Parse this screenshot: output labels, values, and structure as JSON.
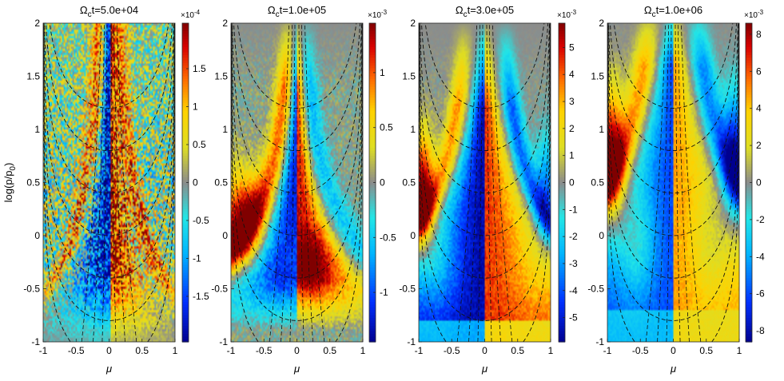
{
  "chart_data": [
    {
      "type": "heatmap",
      "title": "Ωct=5.0e+04",
      "title_prefix": "Ω",
      "title_sub": "c",
      "title_suffix": "t=5.0e+04",
      "xlabel": "μ",
      "ylabel": "log(p/p0)",
      "ylabel_main": "log(p/p",
      "ylabel_sub": "0",
      "ylabel_end": ")",
      "xlim": [
        -1,
        1
      ],
      "ylim": [
        -1,
        2
      ],
      "xticks": [
        -1,
        -0.5,
        0,
        0.5,
        1
      ],
      "xtick_labels": [
        "-1",
        "-0.5",
        "0",
        "0.5",
        "1"
      ],
      "yticks": [
        -1,
        -0.5,
        0,
        0.5,
        1,
        1.5,
        2
      ],
      "ytick_labels": [
        "-1",
        "-0.5",
        "0",
        "0.5",
        "1",
        "1.5",
        "2"
      ],
      "colorbar": {
        "exponent_label": "×10-4",
        "exp_base": "×10",
        "exp_power": "-4",
        "range": [
          -2.1,
          2.1
        ],
        "ticks": [
          -1.5,
          -1,
          -0.5,
          0,
          0.5,
          1,
          1.5
        ],
        "tick_labels": [
          "-1.5",
          "-1",
          "-0.5",
          "0",
          "0.5",
          "1",
          "1.5"
        ]
      },
      "pattern": "noisy",
      "description_values": {
        "center_positive_peak_mu": 0.1,
        "center_negative_peak_mu": -0.2,
        "amplitude": 2.0
      }
    },
    {
      "type": "heatmap",
      "title": "Ωct=1.0e+05",
      "title_prefix": "Ω",
      "title_sub": "c",
      "title_suffix": "t=1.0e+05",
      "xlabel": "μ",
      "ylabel": "",
      "xlim": [
        -1,
        1
      ],
      "ylim": [
        -1,
        2
      ],
      "xticks": [
        -1,
        -0.5,
        0,
        0.5,
        1
      ],
      "xtick_labels": [
        "-1",
        "-0.5",
        "0",
        "0.5",
        "1"
      ],
      "yticks": [
        -1,
        -0.5,
        0,
        0.5,
        1,
        1.5,
        2
      ],
      "ytick_labels": [
        "-1",
        "-0.5",
        "0",
        "0.5",
        "1",
        "1.5",
        "2"
      ],
      "colorbar": {
        "exponent_label": "×10-3",
        "exp_base": "×10",
        "exp_power": "-3",
        "range": [
          -1.45,
          1.45
        ],
        "ticks": [
          -1,
          -0.5,
          0,
          0.5,
          1
        ],
        "tick_labels": [
          "-1",
          "-0.5",
          "0",
          "0.5",
          "1"
        ]
      },
      "pattern": "early",
      "description_values": {
        "amplitude": 1.4
      }
    },
    {
      "type": "heatmap",
      "title": "Ωct=3.0e+05",
      "title_prefix": "Ω",
      "title_sub": "c",
      "title_suffix": "t=3.0e+05",
      "xlabel": "μ",
      "ylabel": "",
      "xlim": [
        -1,
        1
      ],
      "ylim": [
        -1,
        2
      ],
      "xticks": [
        -1,
        -0.5,
        0,
        0.5,
        1
      ],
      "xtick_labels": [
        "-1",
        "-0.5",
        "0",
        "0.5",
        "1"
      ],
      "yticks": [
        -1,
        -0.5,
        0,
        0.5,
        1,
        1.5,
        2
      ],
      "ytick_labels": [
        "-1",
        "-0.5",
        "0",
        "0.5",
        "1",
        "1.5",
        "2"
      ],
      "colorbar": {
        "exponent_label": "×10-3",
        "exp_base": "×10",
        "exp_power": "-3",
        "range": [
          -5.9,
          5.9
        ],
        "ticks": [
          -5,
          -4,
          -3,
          -2,
          -1,
          0,
          1,
          2,
          3,
          4,
          5
        ],
        "tick_labels": [
          "-5",
          "-4",
          "-3",
          "-2",
          "-1",
          "0",
          "1",
          "2",
          "3",
          "4",
          "5"
        ]
      },
      "pattern": "mid",
      "description_values": {
        "amplitude": 5.8
      }
    },
    {
      "type": "heatmap",
      "title": "Ωct=1.0e+06",
      "title_prefix": "Ω",
      "title_sub": "c",
      "title_suffix": "t=1.0e+06",
      "xlabel": "μ",
      "ylabel": "",
      "xlim": [
        -1,
        1
      ],
      "ylim": [
        -1,
        2
      ],
      "xticks": [
        -1,
        -0.5,
        0,
        0.5,
        1
      ],
      "xtick_labels": [
        "-1",
        "-0.5",
        "0",
        "0.5",
        "1"
      ],
      "yticks": [
        -1,
        -0.5,
        0,
        0.5,
        1,
        1.5,
        2
      ],
      "ytick_labels": [
        "-1",
        "-0.5",
        "0",
        "0.5",
        "1",
        "1.5",
        "2"
      ],
      "colorbar": {
        "exponent_label": "×10-3",
        "exp_base": "×10",
        "exp_power": "-3",
        "range": [
          -8.6,
          8.6
        ],
        "ticks": [
          -8,
          -6,
          -4,
          -2,
          0,
          2,
          4,
          6,
          8
        ],
        "tick_labels": [
          "-8",
          "-6",
          "-4",
          "-2",
          "0",
          "2",
          "4",
          "6",
          "8"
        ]
      },
      "pattern": "late",
      "description_values": {
        "amplitude": 8.5
      }
    }
  ],
  "colors": {
    "background": "#ffffff",
    "map_zero": "#8c8c8c",
    "guide_lines": "#111111",
    "colormap": [
      "#00008f",
      "#0030ff",
      "#00b4ff",
      "#23e6e6",
      "#8c8c8c",
      "#dede23",
      "#ffd200",
      "#ff6a00",
      "#d80000",
      "#800000"
    ]
  }
}
